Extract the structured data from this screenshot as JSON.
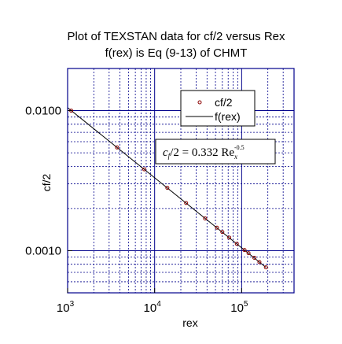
{
  "chart_data": {
    "type": "scatter",
    "title": [
      "Plot of TEXSTAN data for cf/2 versus Rex",
      "f(rex) is Eq (9-13) of CHMT"
    ],
    "xlabel": "rex",
    "ylabel": "cf/2",
    "x_scale": "log",
    "y_scale": "log",
    "xlim": [
      1000,
      400000
    ],
    "ylim": [
      0.0005,
      0.02
    ],
    "x_ticks": [
      {
        "value": 1000,
        "base": "10",
        "exp": "3"
      },
      {
        "value": 10000,
        "base": "10",
        "exp": "4"
      },
      {
        "value": 100000,
        "base": "10",
        "exp": "5"
      }
    ],
    "y_ticks": [
      {
        "value": 0.01,
        "label": "0.0100"
      },
      {
        "value": 0.001,
        "label": "0.0010"
      }
    ],
    "grid": true,
    "legend": {
      "position": "top-right",
      "entries": [
        "cf/2",
        "f(rex)"
      ]
    },
    "annotation": {
      "lhs_c": "c",
      "lhs_sub": "f",
      "lhs_rest": "/2 = 0.332 Re",
      "rhs_sub": "x",
      "rhs_sup": "-0.5"
    },
    "series": [
      {
        "name": "cf/2",
        "kind": "points",
        "color": "#8b0000",
        "x": [
          1100,
          3700,
          7600,
          14000,
          23000,
          38000,
          52000,
          60000,
          72000,
          88000,
          108000,
          120000,
          140000,
          160000,
          190000
        ],
        "y": [
          0.01,
          0.00546,
          0.00381,
          0.00281,
          0.00219,
          0.0017,
          0.00146,
          0.00136,
          0.00124,
          0.00112,
          0.00101,
          0.00096,
          0.00089,
          0.00083,
          0.00076
        ]
      },
      {
        "name": "f(rex)",
        "kind": "line",
        "color": "#000000",
        "x": [
          1000,
          190000
        ],
        "y": [
          0.0105,
          0.00076
        ]
      }
    ]
  }
}
